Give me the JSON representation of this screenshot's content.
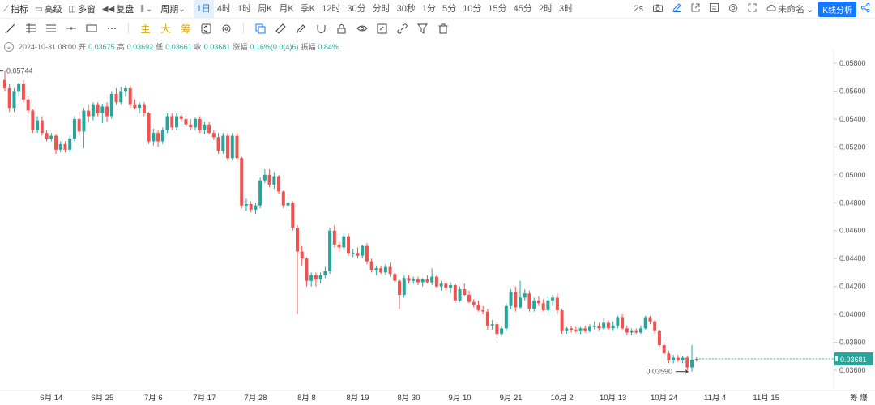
{
  "toolbar": {
    "indicators": "指标",
    "advanced": "高级",
    "multi_window": "多窗",
    "replay": "复盘",
    "period_label": "周期",
    "periods": [
      "1日",
      "4时",
      "1时",
      "周K",
      "月K",
      "季K",
      "12时",
      "30分",
      "分时",
      "30秒",
      "1分",
      "5分",
      "10分",
      "15分",
      "45分",
      "2时",
      "3时"
    ],
    "active_period": "1日",
    "refresh": "2s",
    "layout_name": "未命名",
    "analysis_button": "K线分析"
  },
  "draw_tools": {
    "main": "主",
    "big": "大",
    "chips": "筹"
  },
  "info": {
    "date": "2024-10-31 08:00",
    "open_label": "开",
    "open": "0.03675",
    "high_label": "高",
    "high": "0.03692",
    "low_label": "低",
    "low": "0.03661",
    "close_label": "收",
    "close": "0.03681",
    "change_label": "涨幅",
    "change": "0.16%(0.0(4)6)",
    "amplitude_label": "振幅",
    "amplitude": "0.84%"
  },
  "colors": {
    "up": "#26a69a",
    "down": "#ef5350",
    "accent": "#1677ff"
  },
  "chart_data": {
    "type": "candlestick",
    "y_ticks": [
      "0.05800",
      "0.05600",
      "0.05400",
      "0.05200",
      "0.05000",
      "0.04800",
      "0.04600",
      "0.04400",
      "0.04200",
      "0.04000",
      "0.03800",
      "0.03600"
    ],
    "ylim": [
      0.0355,
      0.0585
    ],
    "x_ticks": [
      "6月 14",
      "6月 25",
      "7月 6",
      "7月 17",
      "7月 28",
      "8月 8",
      "8月 19",
      "8月 30",
      "9月 10",
      "9月 21",
      "10月 2",
      "10月 13",
      "10月 24",
      "11月 4",
      "11月 15"
    ],
    "x_start": "2024-06-04",
    "high_label": "0.05744",
    "low_label": "0.03590",
    "last_price": "0.03681",
    "axis_mode": "筹 爆",
    "candles": [
      {
        "d": "06-04",
        "o": 0.0568,
        "h": 0.05744,
        "l": 0.056,
        "c": 0.0562
      },
      {
        "d": "06-05",
        "o": 0.0562,
        "h": 0.0565,
        "l": 0.0545,
        "c": 0.0548
      },
      {
        "d": "06-06",
        "o": 0.0548,
        "h": 0.0562,
        "l": 0.0545,
        "c": 0.056
      },
      {
        "d": "06-07",
        "o": 0.056,
        "h": 0.0566,
        "l": 0.0556,
        "c": 0.0565
      },
      {
        "d": "06-08",
        "o": 0.0565,
        "h": 0.0568,
        "l": 0.0552,
        "c": 0.0554
      },
      {
        "d": "06-09",
        "o": 0.0554,
        "h": 0.0556,
        "l": 0.0544,
        "c": 0.0546
      },
      {
        "d": "06-10",
        "o": 0.0546,
        "h": 0.0547,
        "l": 0.053,
        "c": 0.0532
      },
      {
        "d": "06-11",
        "o": 0.0532,
        "h": 0.0542,
        "l": 0.053,
        "c": 0.0539
      },
      {
        "d": "06-12",
        "o": 0.0539,
        "h": 0.0542,
        "l": 0.0528,
        "c": 0.053
      },
      {
        "d": "06-13",
        "o": 0.053,
        "h": 0.0532,
        "l": 0.0524,
        "c": 0.0526
      },
      {
        "d": "06-14",
        "o": 0.0526,
        "h": 0.053,
        "l": 0.0524,
        "c": 0.0528
      },
      {
        "d": "06-15",
        "o": 0.0528,
        "h": 0.0529,
        "l": 0.0515,
        "c": 0.0518
      },
      {
        "d": "06-16",
        "o": 0.0518,
        "h": 0.0524,
        "l": 0.0516,
        "c": 0.0522
      },
      {
        "d": "06-17",
        "o": 0.0522,
        "h": 0.0524,
        "l": 0.0516,
        "c": 0.0518
      },
      {
        "d": "06-18",
        "o": 0.0518,
        "h": 0.0528,
        "l": 0.0516,
        "c": 0.0526
      },
      {
        "d": "06-19",
        "o": 0.0526,
        "h": 0.0542,
        "l": 0.0524,
        "c": 0.054
      },
      {
        "d": "06-20",
        "o": 0.054,
        "h": 0.0545,
        "l": 0.0528,
        "c": 0.0531
      },
      {
        "d": "06-21",
        "o": 0.0531,
        "h": 0.0548,
        "l": 0.0519,
        "c": 0.0546
      },
      {
        "d": "06-22",
        "o": 0.0546,
        "h": 0.055,
        "l": 0.0538,
        "c": 0.0542
      },
      {
        "d": "06-23",
        "o": 0.0542,
        "h": 0.0552,
        "l": 0.0539,
        "c": 0.055
      },
      {
        "d": "06-24",
        "o": 0.055,
        "h": 0.0552,
        "l": 0.0542,
        "c": 0.0544
      },
      {
        "d": "06-25",
        "o": 0.0544,
        "h": 0.0551,
        "l": 0.0537,
        "c": 0.0549
      },
      {
        "d": "06-26",
        "o": 0.0549,
        "h": 0.0552,
        "l": 0.0538,
        "c": 0.0542
      },
      {
        "d": "06-27",
        "o": 0.0542,
        "h": 0.056,
        "l": 0.054,
        "c": 0.0558
      },
      {
        "d": "06-28",
        "o": 0.0558,
        "h": 0.0562,
        "l": 0.055,
        "c": 0.0552
      },
      {
        "d": "06-29",
        "o": 0.0552,
        "h": 0.0563,
        "l": 0.055,
        "c": 0.056
      },
      {
        "d": "06-30",
        "o": 0.056,
        "h": 0.0564,
        "l": 0.0556,
        "c": 0.0562
      },
      {
        "d": "07-01",
        "o": 0.0562,
        "h": 0.0564,
        "l": 0.0548,
        "c": 0.055
      },
      {
        "d": "07-02",
        "o": 0.055,
        "h": 0.0554,
        "l": 0.0547,
        "c": 0.0548
      },
      {
        "d": "07-03",
        "o": 0.0548,
        "h": 0.0552,
        "l": 0.0544,
        "c": 0.055
      },
      {
        "d": "07-04",
        "o": 0.055,
        "h": 0.0552,
        "l": 0.0542,
        "c": 0.0544
      },
      {
        "d": "07-05",
        "o": 0.0544,
        "h": 0.0545,
        "l": 0.0522,
        "c": 0.0524
      },
      {
        "d": "07-06",
        "o": 0.0524,
        "h": 0.0533,
        "l": 0.0521,
        "c": 0.053
      },
      {
        "d": "07-07",
        "o": 0.053,
        "h": 0.0532,
        "l": 0.052,
        "c": 0.0524
      },
      {
        "d": "07-08",
        "o": 0.0524,
        "h": 0.0534,
        "l": 0.0522,
        "c": 0.0532
      },
      {
        "d": "07-09",
        "o": 0.0532,
        "h": 0.0544,
        "l": 0.053,
        "c": 0.0542
      },
      {
        "d": "07-10",
        "o": 0.0542,
        "h": 0.0544,
        "l": 0.0532,
        "c": 0.0534
      },
      {
        "d": "07-11",
        "o": 0.0534,
        "h": 0.0544,
        "l": 0.0532,
        "c": 0.0542
      },
      {
        "d": "07-12",
        "o": 0.0542,
        "h": 0.0544,
        "l": 0.0538,
        "c": 0.054
      },
      {
        "d": "07-13",
        "o": 0.054,
        "h": 0.0542,
        "l": 0.0534,
        "c": 0.0536
      },
      {
        "d": "07-14",
        "o": 0.0536,
        "h": 0.054,
        "l": 0.0532,
        "c": 0.0534
      },
      {
        "d": "07-15",
        "o": 0.0534,
        "h": 0.0541,
        "l": 0.0532,
        "c": 0.054
      },
      {
        "d": "07-16",
        "o": 0.054,
        "h": 0.0542,
        "l": 0.053,
        "c": 0.0532
      },
      {
        "d": "07-17",
        "o": 0.0532,
        "h": 0.0538,
        "l": 0.0529,
        "c": 0.0536
      },
      {
        "d": "07-18",
        "o": 0.0536,
        "h": 0.0538,
        "l": 0.0529,
        "c": 0.053
      },
      {
        "d": "07-19",
        "o": 0.053,
        "h": 0.0532,
        "l": 0.0525,
        "c": 0.0527
      },
      {
        "d": "07-20",
        "o": 0.0527,
        "h": 0.053,
        "l": 0.0515,
        "c": 0.0517
      },
      {
        "d": "07-21",
        "o": 0.0517,
        "h": 0.053,
        "l": 0.0515,
        "c": 0.0528
      },
      {
        "d": "07-22",
        "o": 0.0528,
        "h": 0.053,
        "l": 0.051,
        "c": 0.0512
      },
      {
        "d": "07-23",
        "o": 0.0512,
        "h": 0.053,
        "l": 0.051,
        "c": 0.0528
      },
      {
        "d": "07-24",
        "o": 0.0528,
        "h": 0.053,
        "l": 0.051,
        "c": 0.0512
      },
      {
        "d": "07-25",
        "o": 0.0512,
        "h": 0.0513,
        "l": 0.0476,
        "c": 0.0478
      },
      {
        "d": "07-26",
        "o": 0.0478,
        "h": 0.0483,
        "l": 0.0474,
        "c": 0.0479
      },
      {
        "d": "07-27",
        "o": 0.0479,
        "h": 0.0481,
        "l": 0.0473,
        "c": 0.0475
      },
      {
        "d": "07-28",
        "o": 0.0475,
        "h": 0.048,
        "l": 0.0472,
        "c": 0.0478
      },
      {
        "d": "07-29",
        "o": 0.0478,
        "h": 0.0498,
        "l": 0.0476,
        "c": 0.0496
      },
      {
        "d": "07-30",
        "o": 0.0496,
        "h": 0.0504,
        "l": 0.0494,
        "c": 0.05
      },
      {
        "d": "07-31",
        "o": 0.05,
        "h": 0.0504,
        "l": 0.0491,
        "c": 0.0493
      },
      {
        "d": "08-01",
        "o": 0.0493,
        "h": 0.0502,
        "l": 0.049,
        "c": 0.0499
      },
      {
        "d": "08-02",
        "o": 0.0499,
        "h": 0.05,
        "l": 0.0486,
        "c": 0.0488
      },
      {
        "d": "08-03",
        "o": 0.0488,
        "h": 0.0489,
        "l": 0.0476,
        "c": 0.0478
      },
      {
        "d": "08-04",
        "o": 0.0478,
        "h": 0.0484,
        "l": 0.0474,
        "c": 0.048
      },
      {
        "d": "08-05",
        "o": 0.048,
        "h": 0.0481,
        "l": 0.046,
        "c": 0.0462
      },
      {
        "d": "08-06",
        "o": 0.0462,
        "h": 0.0464,
        "l": 0.04,
        "c": 0.0445
      },
      {
        "d": "08-07",
        "o": 0.0445,
        "h": 0.0449,
        "l": 0.0435,
        "c": 0.044
      },
      {
        "d": "08-08",
        "o": 0.044,
        "h": 0.0441,
        "l": 0.042,
        "c": 0.0424
      },
      {
        "d": "08-09",
        "o": 0.0424,
        "h": 0.043,
        "l": 0.042,
        "c": 0.0428
      },
      {
        "d": "08-10",
        "o": 0.0428,
        "h": 0.043,
        "l": 0.042,
        "c": 0.0425
      },
      {
        "d": "08-11",
        "o": 0.0425,
        "h": 0.043,
        "l": 0.0422,
        "c": 0.0428
      },
      {
        "d": "08-12",
        "o": 0.0428,
        "h": 0.0434,
        "l": 0.0426,
        "c": 0.0431
      },
      {
        "d": "08-13",
        "o": 0.0431,
        "h": 0.0462,
        "l": 0.0429,
        "c": 0.046
      },
      {
        "d": "08-14",
        "o": 0.046,
        "h": 0.0464,
        "l": 0.0448,
        "c": 0.045
      },
      {
        "d": "08-15",
        "o": 0.045,
        "h": 0.0452,
        "l": 0.0445,
        "c": 0.0448
      },
      {
        "d": "08-16",
        "o": 0.0448,
        "h": 0.0458,
        "l": 0.0446,
        "c": 0.0456
      },
      {
        "d": "08-17",
        "o": 0.0456,
        "h": 0.0458,
        "l": 0.0442,
        "c": 0.0444
      },
      {
        "d": "08-18",
        "o": 0.0444,
        "h": 0.0447,
        "l": 0.0441,
        "c": 0.0444
      },
      {
        "d": "08-19",
        "o": 0.0444,
        "h": 0.0448,
        "l": 0.044,
        "c": 0.0442
      },
      {
        "d": "08-20",
        "o": 0.0442,
        "h": 0.045,
        "l": 0.044,
        "c": 0.0449
      },
      {
        "d": "08-21",
        "o": 0.0449,
        "h": 0.0451,
        "l": 0.0436,
        "c": 0.0438
      },
      {
        "d": "08-22",
        "o": 0.0438,
        "h": 0.044,
        "l": 0.043,
        "c": 0.0432
      },
      {
        "d": "08-23",
        "o": 0.0432,
        "h": 0.0435,
        "l": 0.0428,
        "c": 0.0433
      },
      {
        "d": "08-24",
        "o": 0.0433,
        "h": 0.0435,
        "l": 0.0429,
        "c": 0.043
      },
      {
        "d": "08-25",
        "o": 0.043,
        "h": 0.0436,
        "l": 0.0428,
        "c": 0.0434
      },
      {
        "d": "08-26",
        "o": 0.0434,
        "h": 0.0437,
        "l": 0.0427,
        "c": 0.0429
      },
      {
        "d": "08-27",
        "o": 0.0429,
        "h": 0.043,
        "l": 0.0422,
        "c": 0.0424
      },
      {
        "d": "08-28",
        "o": 0.0424,
        "h": 0.0425,
        "l": 0.0404,
        "c": 0.0414
      },
      {
        "d": "08-29",
        "o": 0.0414,
        "h": 0.0428,
        "l": 0.0412,
        "c": 0.0426
      },
      {
        "d": "08-30",
        "o": 0.0426,
        "h": 0.0428,
        "l": 0.0422,
        "c": 0.0424
      },
      {
        "d": "08-31",
        "o": 0.0424,
        "h": 0.0427,
        "l": 0.0422,
        "c": 0.0425
      },
      {
        "d": "09-01",
        "o": 0.0425,
        "h": 0.0427,
        "l": 0.0421,
        "c": 0.0423
      },
      {
        "d": "09-02",
        "o": 0.0423,
        "h": 0.0426,
        "l": 0.042,
        "c": 0.0425
      },
      {
        "d": "09-03",
        "o": 0.0425,
        "h": 0.0428,
        "l": 0.0422,
        "c": 0.0423
      },
      {
        "d": "09-04",
        "o": 0.0423,
        "h": 0.0433,
        "l": 0.0421,
        "c": 0.0427
      },
      {
        "d": "09-05",
        "o": 0.0427,
        "h": 0.0428,
        "l": 0.0419,
        "c": 0.042
      },
      {
        "d": "09-06",
        "o": 0.042,
        "h": 0.0424,
        "l": 0.0417,
        "c": 0.0422
      },
      {
        "d": "09-07",
        "o": 0.0422,
        "h": 0.0424,
        "l": 0.0417,
        "c": 0.0419
      },
      {
        "d": "09-08",
        "o": 0.0419,
        "h": 0.0423,
        "l": 0.0415,
        "c": 0.0421
      },
      {
        "d": "09-09",
        "o": 0.0421,
        "h": 0.0422,
        "l": 0.0408,
        "c": 0.041
      },
      {
        "d": "09-10",
        "o": 0.041,
        "h": 0.042,
        "l": 0.0409,
        "c": 0.0418
      },
      {
        "d": "09-11",
        "o": 0.0418,
        "h": 0.0422,
        "l": 0.0413,
        "c": 0.0414
      },
      {
        "d": "09-12",
        "o": 0.0414,
        "h": 0.0417,
        "l": 0.0408,
        "c": 0.0409
      },
      {
        "d": "09-13",
        "o": 0.0409,
        "h": 0.0411,
        "l": 0.0405,
        "c": 0.0407
      },
      {
        "d": "09-14",
        "o": 0.0407,
        "h": 0.041,
        "l": 0.0402,
        "c": 0.0403
      },
      {
        "d": "09-15",
        "o": 0.0403,
        "h": 0.0406,
        "l": 0.04,
        "c": 0.0402
      },
      {
        "d": "09-16",
        "o": 0.0402,
        "h": 0.0404,
        "l": 0.0389,
        "c": 0.0392
      },
      {
        "d": "09-17",
        "o": 0.0392,
        "h": 0.0396,
        "l": 0.0389,
        "c": 0.0393
      },
      {
        "d": "09-18",
        "o": 0.0393,
        "h": 0.0395,
        "l": 0.0383,
        "c": 0.0386
      },
      {
        "d": "09-19",
        "o": 0.0386,
        "h": 0.0392,
        "l": 0.0384,
        "c": 0.039
      },
      {
        "d": "09-20",
        "o": 0.039,
        "h": 0.0408,
        "l": 0.0388,
        "c": 0.0406
      },
      {
        "d": "09-21",
        "o": 0.0406,
        "h": 0.0418,
        "l": 0.0404,
        "c": 0.0416
      },
      {
        "d": "09-22",
        "o": 0.0416,
        "h": 0.042,
        "l": 0.0402,
        "c": 0.0405
      },
      {
        "d": "09-23",
        "o": 0.0405,
        "h": 0.0424,
        "l": 0.0404,
        "c": 0.0412
      },
      {
        "d": "09-24",
        "o": 0.0412,
        "h": 0.0418,
        "l": 0.041,
        "c": 0.0415
      },
      {
        "d": "09-25",
        "o": 0.0415,
        "h": 0.0417,
        "l": 0.0402,
        "c": 0.0404
      },
      {
        "d": "09-26",
        "o": 0.0404,
        "h": 0.0412,
        "l": 0.0402,
        "c": 0.041
      },
      {
        "d": "09-27",
        "o": 0.041,
        "h": 0.0413,
        "l": 0.0406,
        "c": 0.0408
      },
      {
        "d": "09-28",
        "o": 0.0408,
        "h": 0.0411,
        "l": 0.0402,
        "c": 0.0403
      },
      {
        "d": "09-29",
        "o": 0.0403,
        "h": 0.0412,
        "l": 0.0401,
        "c": 0.041
      },
      {
        "d": "09-30",
        "o": 0.041,
        "h": 0.0414,
        "l": 0.0406,
        "c": 0.0412
      },
      {
        "d": "10-01",
        "o": 0.0412,
        "h": 0.0415,
        "l": 0.04,
        "c": 0.0403
      },
      {
        "d": "10-02",
        "o": 0.0403,
        "h": 0.0404,
        "l": 0.0386,
        "c": 0.0388
      },
      {
        "d": "10-03",
        "o": 0.0388,
        "h": 0.0391,
        "l": 0.0386,
        "c": 0.039
      },
      {
        "d": "10-04",
        "o": 0.039,
        "h": 0.0392,
        "l": 0.0387,
        "c": 0.0389
      },
      {
        "d": "10-05",
        "o": 0.0389,
        "h": 0.0391,
        "l": 0.0387,
        "c": 0.0388
      },
      {
        "d": "10-06",
        "o": 0.0388,
        "h": 0.0391,
        "l": 0.0386,
        "c": 0.039
      },
      {
        "d": "10-07",
        "o": 0.039,
        "h": 0.0392,
        "l": 0.0387,
        "c": 0.0388
      },
      {
        "d": "10-08",
        "o": 0.0388,
        "h": 0.0393,
        "l": 0.0387,
        "c": 0.0391
      },
      {
        "d": "10-09",
        "o": 0.0391,
        "h": 0.0395,
        "l": 0.0389,
        "c": 0.0392
      },
      {
        "d": "10-10",
        "o": 0.0392,
        "h": 0.0394,
        "l": 0.0388,
        "c": 0.039
      },
      {
        "d": "10-11",
        "o": 0.039,
        "h": 0.0397,
        "l": 0.0389,
        "c": 0.0394
      },
      {
        "d": "10-12",
        "o": 0.0394,
        "h": 0.0396,
        "l": 0.0389,
        "c": 0.039
      },
      {
        "d": "10-13",
        "o": 0.039,
        "h": 0.0395,
        "l": 0.0388,
        "c": 0.0392
      },
      {
        "d": "10-14",
        "o": 0.0392,
        "h": 0.0399,
        "l": 0.039,
        "c": 0.0398
      },
      {
        "d": "10-15",
        "o": 0.0398,
        "h": 0.04,
        "l": 0.0389,
        "c": 0.039
      },
      {
        "d": "10-16",
        "o": 0.039,
        "h": 0.0392,
        "l": 0.0385,
        "c": 0.0387
      },
      {
        "d": "10-17",
        "o": 0.0387,
        "h": 0.039,
        "l": 0.0385,
        "c": 0.0388
      },
      {
        "d": "10-18",
        "o": 0.0388,
        "h": 0.039,
        "l": 0.0386,
        "c": 0.0387
      },
      {
        "d": "10-19",
        "o": 0.0387,
        "h": 0.0392,
        "l": 0.0386,
        "c": 0.039
      },
      {
        "d": "10-20",
        "o": 0.039,
        "h": 0.0399,
        "l": 0.0389,
        "c": 0.0398
      },
      {
        "d": "10-21",
        "o": 0.0398,
        "h": 0.0399,
        "l": 0.0393,
        "c": 0.0395
      },
      {
        "d": "10-22",
        "o": 0.0395,
        "h": 0.0396,
        "l": 0.0386,
        "c": 0.0388
      },
      {
        "d": "10-23",
        "o": 0.0388,
        "h": 0.0389,
        "l": 0.0376,
        "c": 0.0378
      },
      {
        "d": "10-24",
        "o": 0.0378,
        "h": 0.038,
        "l": 0.037,
        "c": 0.0372
      },
      {
        "d": "10-25",
        "o": 0.0372,
        "h": 0.0374,
        "l": 0.0365,
        "c": 0.0367
      },
      {
        "d": "10-26",
        "o": 0.0367,
        "h": 0.0371,
        "l": 0.0365,
        "c": 0.0369
      },
      {
        "d": "10-27",
        "o": 0.0369,
        "h": 0.0371,
        "l": 0.0366,
        "c": 0.0367
      },
      {
        "d": "10-28",
        "o": 0.0367,
        "h": 0.037,
        "l": 0.0365,
        "c": 0.0369
      },
      {
        "d": "10-29",
        "o": 0.0369,
        "h": 0.037,
        "l": 0.036,
        "c": 0.0362
      },
      {
        "d": "10-30",
        "o": 0.0362,
        "h": 0.0378,
        "l": 0.0359,
        "c": 0.03675
      },
      {
        "d": "10-31",
        "o": 0.03675,
        "h": 0.03692,
        "l": 0.03661,
        "c": 0.03681
      }
    ]
  }
}
